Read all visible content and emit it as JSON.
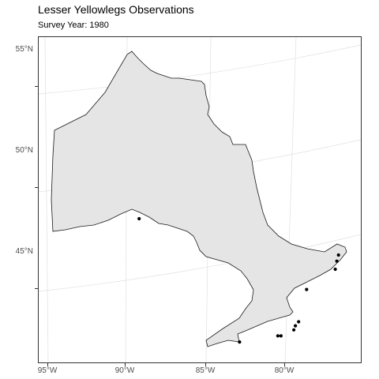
{
  "title": "Lesser Yellowlegs Observations",
  "subtitle": "Survey Year: 1980",
  "axes": {
    "y_ticks": [
      "55°N",
      "50°N",
      "45°N"
    ],
    "x_ticks": [
      "95°W",
      "90°W",
      "85°W",
      "80°W"
    ]
  },
  "colors": {
    "land_fill": "#e5e5e5",
    "land_stroke": "#1a1a1a",
    "graticule": "#e0e0e0",
    "point": "#000000"
  },
  "chart_data": {
    "type": "scatter",
    "title": "Lesser Yellowlegs Observations",
    "subtitle": "Survey Year: 1980",
    "region": "Ontario",
    "grid": true,
    "x_ticks": [
      "95°W",
      "90°W",
      "85°W",
      "80°W"
    ],
    "y_ticks": [
      "55°N",
      "50°N",
      "45°N"
    ],
    "points": [
      {
        "lon": -89.2,
        "lat": 48.4
      },
      {
        "lon": -76.7,
        "lat": 46.6
      },
      {
        "lon": -76.8,
        "lat": 46.3
      },
      {
        "lon": -76.9,
        "lat": 45.9
      },
      {
        "lon": -78.7,
        "lat": 44.9
      },
      {
        "lon": -79.2,
        "lat": 43.3
      },
      {
        "lon": -79.4,
        "lat": 43.1
      },
      {
        "lon": -79.5,
        "lat": 42.9
      },
      {
        "lon": -80.3,
        "lat": 42.6
      },
      {
        "lon": -80.5,
        "lat": 42.6
      },
      {
        "lon": -82.9,
        "lat": 42.3
      }
    ]
  }
}
